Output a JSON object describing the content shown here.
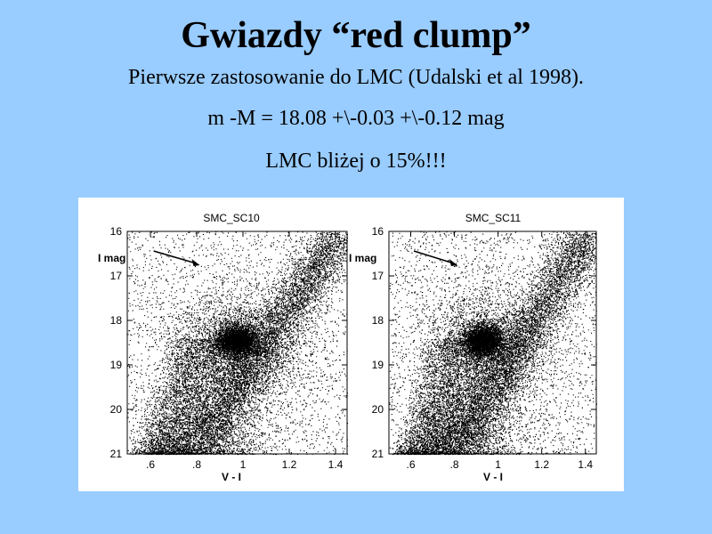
{
  "slide": {
    "title": "Gwiazdy “red clump”",
    "line1": "Pierwsze zastosowanie do LMC (Udalski et al 1998).",
    "line2": "m -M = 18.08 +\\-0.03 +\\-0.12 mag",
    "line3": "LMC bliżej o 15%!!!"
  },
  "colors": {
    "background": "#99ccff",
    "figure_background": "#ffffff",
    "points": "#000000"
  },
  "chart_data": [
    {
      "type": "scatter",
      "title": "SMC_SC10",
      "xlabel": "V - I",
      "ylabel": "I mag",
      "x_ticks": [
        ".6",
        ".8",
        "1",
        "1.2",
        "1.4"
      ],
      "y_ticks": [
        "16",
        "17",
        "18",
        "19",
        "20",
        "21"
      ],
      "xlim": [
        0.5,
        1.45
      ],
      "ylim": [
        21,
        16
      ],
      "y_inverted": true,
      "red_clump_center": {
        "x": 0.97,
        "y": 18.45
      },
      "annotation": "arrow"
    },
    {
      "type": "scatter",
      "title": "SMC_SC11",
      "xlabel": "V - I",
      "ylabel": "I mag",
      "x_ticks": [
        ".6",
        ".8",
        "1",
        "1.2",
        "1.4"
      ],
      "y_ticks": [
        "16",
        "17",
        "18",
        "19",
        "20",
        "21"
      ],
      "xlim": [
        0.5,
        1.45
      ],
      "ylim": [
        21,
        16
      ],
      "y_inverted": true,
      "red_clump_center": {
        "x": 0.93,
        "y": 18.45
      },
      "annotation": "arrow"
    }
  ]
}
